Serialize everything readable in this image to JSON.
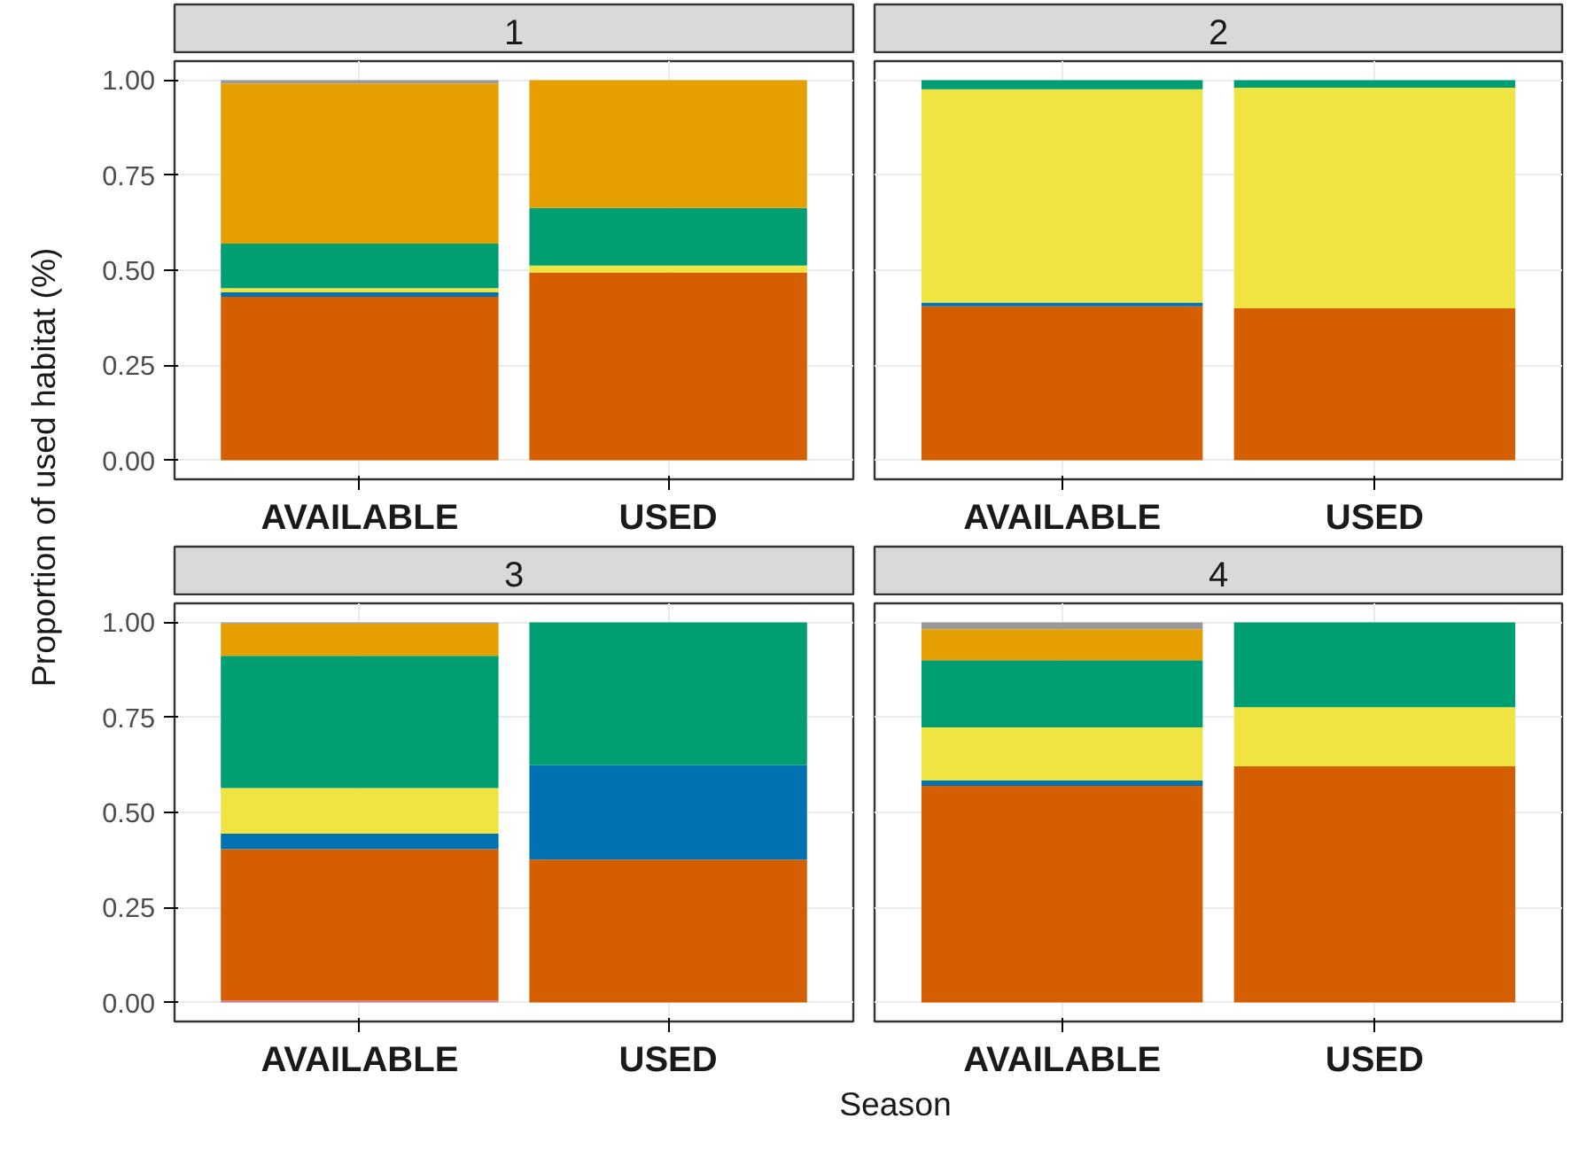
{
  "chart_data": [
    {
      "type": "bar",
      "title": "1",
      "stacked": true,
      "ylabel": "Proportion of used habitat (%)",
      "xlabel": "Season",
      "categories": [
        "AVAILABLE",
        "USED"
      ],
      "ylim": [
        -0.05,
        1.05
      ],
      "yticks": [
        {
          "value": 0,
          "label": "0.00"
        },
        {
          "value": 0.25,
          "label": "0.25"
        },
        {
          "value": 0.5,
          "label": "0.50"
        },
        {
          "value": 0.75,
          "label": "0.75"
        },
        {
          "value": 1,
          "label": "1.00"
        }
      ],
      "grid": true,
      "series": [
        {
          "color": "#d55e00",
          "values": [
            0.43,
            0.494
          ]
        },
        {
          "color": "#0072b2",
          "values": [
            0.012,
            null
          ]
        },
        {
          "color": "#f0e442",
          "values": [
            0.011,
            0.018
          ]
        },
        {
          "color": "#009e73",
          "values": [
            0.117,
            0.152
          ]
        },
        {
          "color": "#e69f00",
          "values": [
            0.421,
            0.336
          ]
        },
        {
          "color": "#999999",
          "values": [
            0.009,
            null
          ]
        }
      ]
    },
    {
      "type": "bar",
      "title": "2",
      "stacked": true,
      "categories": [
        "AVAILABLE",
        "USED"
      ],
      "ylim": [
        -0.05,
        1.05
      ],
      "yticks": [
        0,
        0.25,
        0.5,
        0.75,
        1
      ],
      "grid": true,
      "tick_labels": "x",
      "series": [
        {
          "color": "#d55e00",
          "values": [
            0.405,
            0.4
          ]
        },
        {
          "color": "#0072b2",
          "values": [
            0.01,
            null
          ]
        },
        {
          "color": "#f0e442",
          "values": [
            0.561,
            0.58
          ]
        },
        {
          "color": "#009e73",
          "values": [
            0.024,
            0.02
          ]
        }
      ]
    },
    {
      "type": "bar",
      "title": "3",
      "stacked": true,
      "categories": [
        "AVAILABLE",
        "USED"
      ],
      "ylim": [
        -0.05,
        1.05
      ],
      "yticks": [
        {
          "value": 0,
          "label": "0.00"
        },
        {
          "value": 0.25,
          "label": "0.25"
        },
        {
          "value": 0.5,
          "label": "0.50"
        },
        {
          "value": 0.75,
          "label": "0.75"
        },
        {
          "value": 1,
          "label": "1.00"
        }
      ],
      "grid": true,
      "series": [
        {
          "color": "#cc79a7",
          "values": [
            0.005,
            null
          ]
        },
        {
          "color": "#d55e00",
          "values": [
            0.398,
            0.376
          ]
        },
        {
          "color": "#0072b2",
          "values": [
            0.041,
            0.248
          ]
        },
        {
          "color": "#f0e442",
          "values": [
            0.12,
            null
          ]
        },
        {
          "color": "#009e73",
          "values": [
            0.348,
            0.376
          ]
        },
        {
          "color": "#e69f00",
          "values": [
            0.085,
            null
          ]
        },
        {
          "color": "#999999",
          "values": [
            0.003,
            null
          ]
        }
      ]
    },
    {
      "type": "bar",
      "title": "4",
      "stacked": true,
      "categories": [
        "AVAILABLE",
        "USED"
      ],
      "ylim": [
        -0.05,
        1.05
      ],
      "yticks": [
        0,
        0.25,
        0.5,
        0.75,
        1
      ],
      "grid": true,
      "tick_labels": "x",
      "series": [
        {
          "color": "#d55e00",
          "values": [
            0.57,
            0.621
          ]
        },
        {
          "color": "#0072b2",
          "values": [
            0.014,
            null
          ]
        },
        {
          "color": "#f0e442",
          "values": [
            0.14,
            0.156
          ]
        },
        {
          "color": "#009e73",
          "values": [
            0.176,
            0.223
          ]
        },
        {
          "color": "#e69f00",
          "values": [
            0.082,
            null
          ]
        },
        {
          "color": "#999999",
          "values": [
            0.018,
            null
          ]
        }
      ]
    }
  ]
}
